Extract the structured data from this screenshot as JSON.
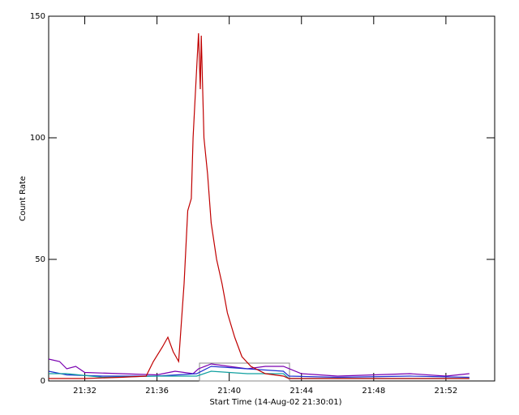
{
  "chart_data": {
    "type": "line",
    "xlabel": "Start Time (14-Aug-02 21:30:01)",
    "ylabel": "Count Rate",
    "xlim": [
      0,
      24.7
    ],
    "xticks": [
      {
        "value": 2,
        "label": "21:32"
      },
      {
        "value": 6,
        "label": "21:36"
      },
      {
        "value": 10,
        "label": "21:40"
      },
      {
        "value": 14,
        "label": "21:44"
      },
      {
        "value": 18,
        "label": "21:48"
      },
      {
        "value": 22,
        "label": "21:52"
      }
    ],
    "ylim": [
      0,
      150
    ],
    "yticks": [
      0,
      50,
      100,
      150
    ],
    "series": [
      {
        "color": "#7a00b0",
        "x": [
          0,
          0.6,
          1,
          1.5,
          2,
          4,
          6,
          7,
          8,
          8.3,
          9,
          10,
          11,
          12,
          13,
          14,
          16,
          18,
          20,
          22,
          23.3
        ],
        "values": [
          9,
          8,
          5,
          6,
          3.5,
          3,
          2.5,
          4,
          3,
          5,
          7,
          6,
          5,
          6,
          6,
          3,
          2,
          2.5,
          3,
          2,
          3
        ]
      },
      {
        "color": "#2030d0",
        "x": [
          0,
          1,
          3,
          6,
          8.2,
          9,
          11,
          13,
          13.3,
          16,
          20,
          23.3
        ],
        "values": [
          4,
          2.5,
          2,
          2,
          3,
          6,
          5,
          4,
          2,
          1.5,
          2,
          1.5
        ]
      },
      {
        "color": "#10a0a0",
        "x": [
          0,
          1,
          3,
          6,
          8.2,
          9,
          11,
          13,
          13.3,
          23.3
        ],
        "values": [
          3,
          3,
          1.5,
          2,
          2,
          4,
          3,
          3,
          1,
          1
        ]
      },
      {
        "color": "#c00000",
        "x": [
          0,
          2,
          4,
          5.4,
          5.8,
          6.3,
          6.6,
          6.9,
          7.2,
          7.5,
          7.7,
          7.9,
          8.0,
          8.1,
          8.3,
          8.4,
          8.45,
          8.6,
          8.8,
          9.0,
          9.3,
          9.6,
          9.9,
          10.3,
          10.7,
          11.2,
          12,
          13,
          13.3,
          18,
          23.3
        ],
        "values": [
          1,
          1,
          1.5,
          2,
          8,
          14,
          18,
          12,
          8,
          40,
          70,
          75,
          100,
          115,
          143,
          120,
          142,
          100,
          85,
          65,
          50,
          40,
          28,
          18,
          10,
          6,
          3,
          2,
          1,
          1,
          1
        ]
      }
    ]
  }
}
